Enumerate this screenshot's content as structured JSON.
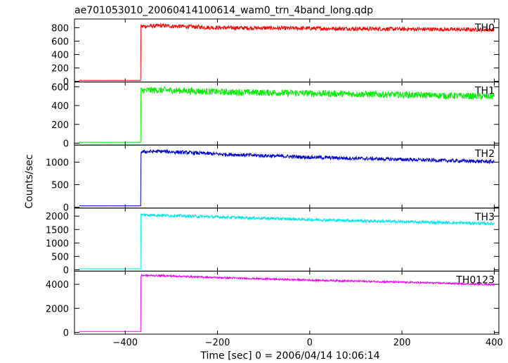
{
  "chart_data": {
    "type": "line",
    "title": "ae701053010_20060414100614_wam0_trn_4band_long.qdp",
    "xlabel": "Time [sec] 0 = 2006/04/14 10:06:14",
    "ylabel": "Counts/sec",
    "xlim": [
      -510,
      410
    ],
    "x_ticks": [
      -400,
      -200,
      0,
      200,
      400
    ],
    "x_tick_labels": [
      "−400",
      "−200",
      "0",
      "200",
      "400"
    ],
    "grid": false,
    "panels": [
      {
        "name": "TH0",
        "color": "#ff0000",
        "ylim": [
          -10,
          930
        ],
        "y_ticks": [
          0,
          200,
          400,
          600,
          800
        ],
        "y_tick_labels": [
          "0",
          "200",
          "400",
          "600",
          "800"
        ],
        "pre_level": 15,
        "rise_time": -366,
        "key_points": [
          [
            -500,
            15
          ],
          [
            -370,
            15
          ],
          [
            -366,
            820
          ],
          [
            -320,
            830
          ],
          [
            -200,
            800
          ],
          [
            0,
            790
          ],
          [
            200,
            780
          ],
          [
            400,
            770
          ]
        ],
        "noise": 30
      },
      {
        "name": "TH1",
        "color": "#00ee00",
        "ylim": [
          -20,
          650
        ],
        "y_ticks": [
          0,
          200,
          400,
          600
        ],
        "y_tick_labels": [
          "0",
          "200",
          "400",
          "600"
        ],
        "pre_level": 10,
        "rise_time": -366,
        "key_points": [
          [
            -500,
            10
          ],
          [
            -370,
            10
          ],
          [
            -366,
            560
          ],
          [
            -320,
            565
          ],
          [
            -200,
            545
          ],
          [
            0,
            530
          ],
          [
            200,
            515
          ],
          [
            400,
            495
          ]
        ],
        "noise": 35
      },
      {
        "name": "TH2",
        "color": "#0000cc",
        "ylim": [
          -20,
          1380
        ],
        "y_ticks": [
          0,
          500,
          1000
        ],
        "y_tick_labels": [
          "0",
          "500",
          "1000"
        ],
        "pre_level": 30,
        "rise_time": -366,
        "key_points": [
          [
            -500,
            30
          ],
          [
            -370,
            30
          ],
          [
            -366,
            1230
          ],
          [
            -320,
            1240
          ],
          [
            -200,
            1180
          ],
          [
            0,
            1110
          ],
          [
            200,
            1060
          ],
          [
            400,
            1010
          ]
        ],
        "noise": 40
      },
      {
        "name": "TH3",
        "color": "#00e5e5",
        "ylim": [
          -50,
          2300
        ],
        "y_ticks": [
          0,
          500,
          1000,
          1500,
          2000
        ],
        "y_tick_labels": [
          "0",
          "500",
          "1000",
          "1500",
          "2000"
        ],
        "pre_level": 40,
        "rise_time": -366,
        "key_points": [
          [
            -500,
            40
          ],
          [
            -370,
            40
          ],
          [
            -366,
            2050
          ],
          [
            -320,
            2030
          ],
          [
            -200,
            1970
          ],
          [
            0,
            1870
          ],
          [
            200,
            1790
          ],
          [
            400,
            1720
          ]
        ],
        "noise": 55
      },
      {
        "name": "TH0123",
        "color": "#ee00ee",
        "ylim": [
          -150,
          5100
        ],
        "y_ticks": [
          0,
          2000,
          4000
        ],
        "y_tick_labels": [
          "0",
          "2000",
          "4000"
        ],
        "pre_level": 70,
        "rise_time": -366,
        "key_points": [
          [
            -500,
            70
          ],
          [
            -370,
            70
          ],
          [
            -366,
            4750
          ],
          [
            -320,
            4720
          ],
          [
            -200,
            4560
          ],
          [
            0,
            4350
          ],
          [
            200,
            4180
          ],
          [
            400,
            3980
          ]
        ],
        "noise": 75
      }
    ]
  }
}
